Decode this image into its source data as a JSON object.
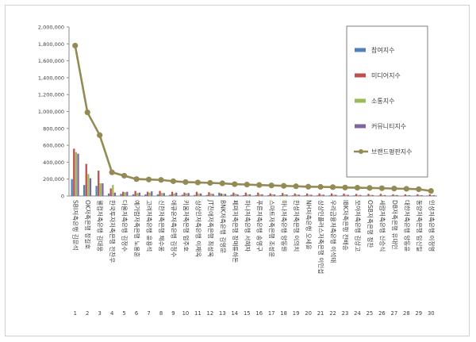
{
  "chart_data": {
    "type": "bar",
    "ylim": [
      0,
      2000000
    ],
    "yticks": [
      0,
      200000,
      400000,
      600000,
      800000,
      1000000,
      1200000,
      1400000,
      1600000,
      1800000,
      2000000
    ],
    "ytick_labels": [
      "0",
      "200,000",
      "400,000",
      "600,000",
      "800,000",
      "1,000,000",
      "1,200,000",
      "1,400,000",
      "1,600,000",
      "1,800,000",
      "2,000,000"
    ],
    "grid": false,
    "legend_position": "top-right",
    "ranks": [
      "1",
      "2",
      "3",
      "4",
      "5",
      "6",
      "7",
      "8",
      "9",
      "10",
      "11",
      "12",
      "13",
      "14",
      "15",
      "16",
      "17",
      "18",
      "19",
      "20",
      "21",
      "22",
      "23",
      "24",
      "25",
      "26",
      "27",
      "28",
      "29",
      "30"
    ],
    "categories": [
      "SBI저축은행 김문석",
      "OK저축은행 정길호",
      "웰컴저축은행 김대웅",
      "한국투자저축은행 전찬우",
      "다올저축은행 김정수",
      "예가람저축은행 노용훈",
      "고려저축은행 윤용석",
      "신한저축은행 채수웅",
      "애큐온저축은행 김정수",
      "키움저축은행 엄주호",
      "상상인저축은행 이재옥",
      "JT친애저축은행 최성욱",
      "BNK저축은행 김영문",
      "페퍼저축은행 장매튜하돈",
      "하나저축은행 서혜자",
      "푸른저축은행 송영구",
      "스마트저축은행 조성윤",
      "하나저축은행 양동원",
      "한성저축은행 이의치",
      "NH저축은행 오세윤",
      "상상인플러스저축은행 이인섭",
      "우리금융저축은행 이석태",
      "IBK저축은행 전배승",
      "모아저축은행 김상고",
      "OSB저축은행 정찬",
      "세람저축은행 신승식",
      "DB저축은행 유대인",
      "대한저축은행 양동윤",
      "동양저축은행 임신일",
      "인성저축은행 이정영"
    ],
    "series": [
      {
        "name": "참여지수",
        "type": "bar",
        "color": "#4f81bd",
        "values": [
          200000,
          130000,
          120000,
          30000,
          25000,
          20000,
          20000,
          20000,
          15000,
          15000,
          12000,
          12000,
          40000,
          15000,
          10000,
          10000,
          10000,
          10000,
          8000,
          8000,
          8000,
          8000,
          7000,
          7000,
          6000,
          6000,
          6000,
          5000,
          5000,
          5000
        ]
      },
      {
        "name": "미디어지수",
        "type": "bar",
        "color": "#c0504d",
        "values": [
          560000,
          380000,
          300000,
          90000,
          50000,
          60000,
          50000,
          60000,
          50000,
          40000,
          50000,
          45000,
          30000,
          40000,
          40000,
          40000,
          30000,
          35000,
          30000,
          30000,
          30000,
          30000,
          28000,
          25000,
          25000,
          25000,
          20000,
          20000,
          20000,
          20000
        ]
      },
      {
        "name": "소통지수",
        "type": "bar",
        "color": "#9bbb59",
        "values": [
          520000,
          260000,
          150000,
          130000,
          45000,
          35000,
          40000,
          35000,
          30000,
          30000,
          30000,
          30000,
          25000,
          25000,
          20000,
          20000,
          20000,
          18000,
          18000,
          15000,
          15000,
          15000,
          14000,
          13000,
          13000,
          12000,
          12000,
          11000,
          11000,
          10000
        ]
      },
      {
        "name": "커뮤니티지수",
        "type": "bar",
        "color": "#8064a2",
        "values": [
          500000,
          210000,
          150000,
          40000,
          50000,
          40000,
          55000,
          35000,
          40000,
          35000,
          30000,
          25000,
          25000,
          20000,
          20000,
          20000,
          18000,
          18000,
          16000,
          15000,
          15000,
          14000,
          14000,
          12000,
          12000,
          11000,
          11000,
          10000,
          10000,
          10000
        ]
      },
      {
        "name": "브랜드평판지수",
        "type": "line",
        "color": "#948a54",
        "values": [
          1780000,
          990000,
          720000,
          280000,
          240000,
          200000,
          195000,
          190000,
          175000,
          165000,
          160000,
          155000,
          150000,
          140000,
          135000,
          130000,
          125000,
          120000,
          115000,
          110000,
          108000,
          105000,
          100000,
          98000,
          95000,
          92000,
          88000,
          85000,
          80000,
          60000
        ]
      }
    ]
  }
}
